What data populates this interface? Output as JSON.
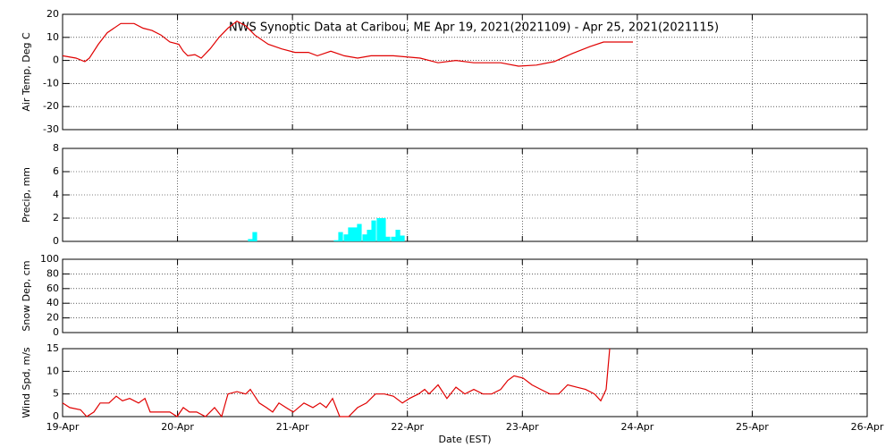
{
  "chart_data": [
    {
      "type": "line",
      "title": "NWS Synoptic Data at Caribou, ME   Apr 19, 2021(2021109) - Apr 25, 2021(2021115)",
      "ylabel": "Air Temp, Deg C",
      "color": "#e00000",
      "x": [
        0,
        0.117,
        0.194,
        0.233,
        0.311,
        0.389,
        0.506,
        0.622,
        0.7,
        0.778,
        0.856,
        0.933,
        1.011,
        1.05,
        1.089,
        1.151,
        1.206,
        1.283,
        1.361,
        1.439,
        1.517,
        1.594,
        1.672,
        1.789,
        1.906,
        2.022,
        2.139,
        2.217,
        2.333,
        2.45,
        2.567,
        2.683,
        2.878,
        3.111,
        3.267,
        3.422,
        3.578,
        3.811,
        3.967,
        4.122,
        4.278,
        4.433,
        4.589,
        4.706,
        4.962
      ],
      "values": [
        2,
        1,
        -0.5,
        1,
        7,
        12,
        16,
        16,
        14,
        13,
        11,
        8,
        7,
        4,
        2,
        2.5,
        1,
        5,
        10,
        14,
        17,
        15,
        11,
        7,
        5,
        3.5,
        3.5,
        2,
        4,
        2,
        1,
        2,
        2,
        1,
        -1,
        0,
        -1,
        -1,
        -2.5,
        -2,
        -0.5,
        3,
        6,
        8,
        8
      ],
      "xlim": [
        0,
        7
      ],
      "xticks": [
        0,
        1,
        2,
        3,
        4,
        5,
        6,
        7
      ],
      "ylim": [
        -30,
        20
      ],
      "yticks": [
        -30,
        -20,
        -10,
        0,
        10,
        20
      ],
      "grid": true
    },
    {
      "type": "bar",
      "ylabel": "Precip, mm",
      "color": "#00ffff",
      "x": [
        1.633,
        1.672,
        2.38,
        2.419,
        2.466,
        2.504,
        2.543,
        2.582,
        2.629,
        2.668,
        2.707,
        2.753,
        2.792,
        2.831,
        2.878,
        2.917,
        2.956
      ],
      "values": [
        0.2,
        0.8,
        0.1,
        0.8,
        0.6,
        1.2,
        1.2,
        1.5,
        0.6,
        1.0,
        1.8,
        2.0,
        2.0,
        0.4,
        0.4,
        1.0,
        0.5
      ],
      "xlim": [
        0,
        7
      ],
      "xticks": [
        0,
        1,
        2,
        3,
        4,
        5,
        6,
        7
      ],
      "ylim": [
        0,
        8
      ],
      "yticks": [
        0,
        2,
        4,
        6,
        8
      ],
      "grid": true
    },
    {
      "type": "line",
      "ylabel": "Snow Dep, cm",
      "color": "#e00000",
      "x": [],
      "values": [],
      "xlim": [
        0,
        7
      ],
      "xticks": [
        0,
        1,
        2,
        3,
        4,
        5,
        6,
        7
      ],
      "ylim": [
        0,
        100
      ],
      "yticks": [
        0,
        20,
        40,
        60,
        80,
        100
      ],
      "grid": true
    },
    {
      "type": "line",
      "ylabel": "Wind Spd, m/s",
      "xlabel": "Date (EST)",
      "color": "#e00000",
      "x": [
        0,
        0.062,
        0.156,
        0.21,
        0.272,
        0.327,
        0.404,
        0.467,
        0.521,
        0.583,
        0.661,
        0.716,
        0.762,
        0.856,
        0.933,
        0.996,
        1.05,
        1.104,
        1.167,
        1.244,
        1.322,
        1.384,
        1.439,
        1.517,
        1.594,
        1.633,
        1.711,
        1.773,
        1.828,
        1.882,
        1.944,
        2.007,
        2.1,
        2.178,
        2.24,
        2.294,
        2.349,
        2.411,
        2.489,
        2.567,
        2.644,
        2.722,
        2.8,
        2.878,
        2.956,
        3.018,
        3.096,
        3.15,
        3.189,
        3.267,
        3.344,
        3.422,
        3.5,
        3.578,
        3.656,
        3.733,
        3.811,
        3.873,
        3.928,
        4.006,
        4.083,
        4.161,
        4.239,
        4.317,
        4.394,
        4.472,
        4.55,
        4.628,
        4.682,
        4.729,
        4.76
      ],
      "values": [
        3,
        2,
        1.5,
        0,
        1,
        3,
        3,
        4.5,
        3.5,
        4,
        3,
        4,
        1,
        1,
        1,
        0,
        2,
        1,
        1,
        0,
        2,
        0,
        5,
        5.5,
        5,
        6,
        3,
        2,
        1,
        3,
        2,
        1,
        3,
        2,
        3,
        2,
        4,
        0,
        0,
        2,
        3,
        5,
        5,
        4.5,
        3,
        4,
        5,
        6,
        5,
        7,
        4,
        6.5,
        5,
        6,
        5,
        5,
        6,
        8,
        9,
        8.5,
        7,
        6,
        5,
        5,
        7,
        6.5,
        6,
        5,
        3.5,
        6,
        15
      ],
      "xlim": [
        0,
        7
      ],
      "xticks": [
        {
          "value": 0,
          "label": "19-Apr"
        },
        {
          "value": 1,
          "label": "20-Apr"
        },
        {
          "value": 2,
          "label": "21-Apr"
        },
        {
          "value": 3,
          "label": "22-Apr"
        },
        {
          "value": 4,
          "label": "23-Apr"
        },
        {
          "value": 5,
          "label": "24-Apr"
        },
        {
          "value": 6,
          "label": "25-Apr"
        },
        {
          "value": 7,
          "label": "26-Apr"
        }
      ],
      "ylim": [
        0,
        15
      ],
      "yticks": [
        0,
        5,
        10,
        15
      ],
      "grid": true
    }
  ]
}
